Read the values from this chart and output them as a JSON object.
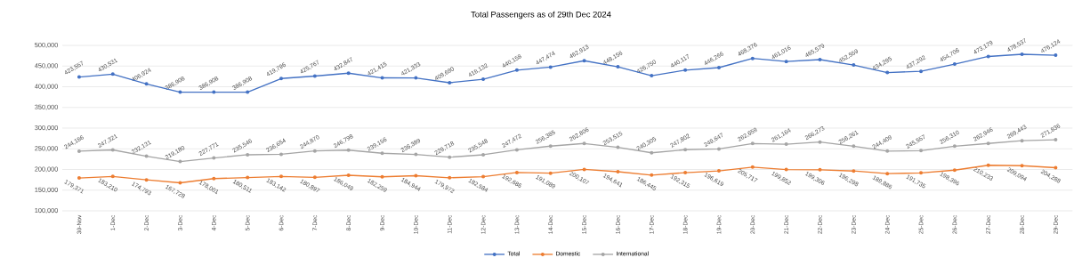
{
  "chart_data": {
    "type": "line",
    "title": "Total Passengers as of 29th Dec 2024",
    "categories": [
      "30-Nov",
      "1-Dec",
      "2-Dec",
      "3-Dec",
      "4-Dec",
      "5-Dec",
      "6-Dec",
      "7-Dec",
      "8-Dec",
      "9-Dec",
      "10-Dec",
      "11-Dec",
      "12-Dec",
      "13-Dec",
      "14-Dec",
      "15-Dec",
      "16-Dec",
      "17-Dec",
      "18-Dec",
      "19-Dec",
      "20-Dec",
      "21-Dec",
      "22-Dec",
      "23-Dec",
      "24-Dec",
      "25-Dec",
      "26-Dec",
      "27-Dec",
      "28-Dec",
      "29-Dec"
    ],
    "series": [
      {
        "name": "Total",
        "color": "#4472c4",
        "values": [
          423557,
          430531,
          406924,
          386908,
          386908,
          386908,
          419796,
          425767,
          432847,
          421415,
          421333,
          409690,
          418132,
          440158,
          447474,
          462913,
          448156,
          426750,
          440117,
          446266,
          468376,
          461016,
          465579,
          452559,
          434295,
          437292,
          454706,
          473179,
          478537,
          476124
        ],
        "value_labels": [
          "423,557",
          "430,531",
          "406,924",
          "386,908",
          "386,908",
          "386,908",
          "419,796",
          "425,767",
          "432,847",
          "421,415",
          "421,333",
          "409,690",
          "418,132",
          "440,158",
          "447,474",
          "462,913",
          "448,156",
          "426,750",
          "440,117",
          "446,266",
          "468,376",
          "461,016",
          "465,579",
          "452,559",
          "434,295",
          "437,292",
          "454,706",
          "473,179",
          "478,537",
          "476,124"
        ]
      },
      {
        "name": "Domestic",
        "color": "#ed7d31",
        "values": [
          179371,
          183210,
          174793,
          167728,
          178001,
          180511,
          183142,
          180897,
          186049,
          182259,
          184944,
          179972,
          182584,
          192686,
          191089,
          200107,
          194641,
          186445,
          192315,
          196619,
          205717,
          199852,
          199306,
          196298,
          189886,
          191735,
          198396,
          210233,
          209094,
          204288
        ],
        "value_labels": [
          "179,371",
          "183,210",
          "174,793",
          "167,728",
          "178,001",
          "180,511",
          "183,142",
          "180,897",
          "186,049",
          "182,259",
          "184,944",
          "179,972",
          "182,584",
          "192,686",
          "191,089",
          "200,107",
          "194,641",
          "186,445",
          "192,315",
          "196,619",
          "205,717",
          "199,852",
          "199,306",
          "196,298",
          "189,886",
          "191,735",
          "198,396",
          "210,233",
          "209,094",
          "204,288"
        ]
      },
      {
        "name": "International",
        "color": "#a5a5a5",
        "values": [
          244186,
          247321,
          232131,
          219180,
          227771,
          235546,
          236654,
          244870,
          246798,
          239156,
          236389,
          229718,
          235548,
          247472,
          256385,
          262806,
          253515,
          240305,
          247802,
          249647,
          262659,
          261164,
          266273,
          256261,
          244409,
          245557,
          256310,
          262946,
          269443,
          271836
        ],
        "value_labels": [
          "244,186",
          "247,321",
          "232,131",
          "219,180",
          "227,771",
          "235,546",
          "236,654",
          "244,870",
          "246,798",
          "239,156",
          "236,389",
          "229,718",
          "235,548",
          "247,472",
          "256,385",
          "262,806",
          "253,515",
          "240,305",
          "247,802",
          "249,647",
          "262,659",
          "261,164",
          "266,273",
          "256,261",
          "244,409",
          "245,557",
          "256,310",
          "262,946",
          "269,443",
          "271,836"
        ]
      }
    ],
    "ylim": [
      100000,
      500000
    ],
    "yticks": [
      {
        "value": 100000,
        "label": "100,000"
      },
      {
        "value": 150000,
        "label": "150,000"
      },
      {
        "value": 200000,
        "label": "200,000"
      },
      {
        "value": 250000,
        "label": "250,000"
      },
      {
        "value": 300000,
        "label": "300,000"
      },
      {
        "value": 350000,
        "label": "350,000"
      },
      {
        "value": 400000,
        "label": "400,000"
      },
      {
        "value": 450000,
        "label": "450,000"
      },
      {
        "value": 500000,
        "label": "500,000"
      }
    ],
    "grid": "y",
    "legend": "bottom",
    "marker": "circle",
    "line_style": "solid"
  }
}
